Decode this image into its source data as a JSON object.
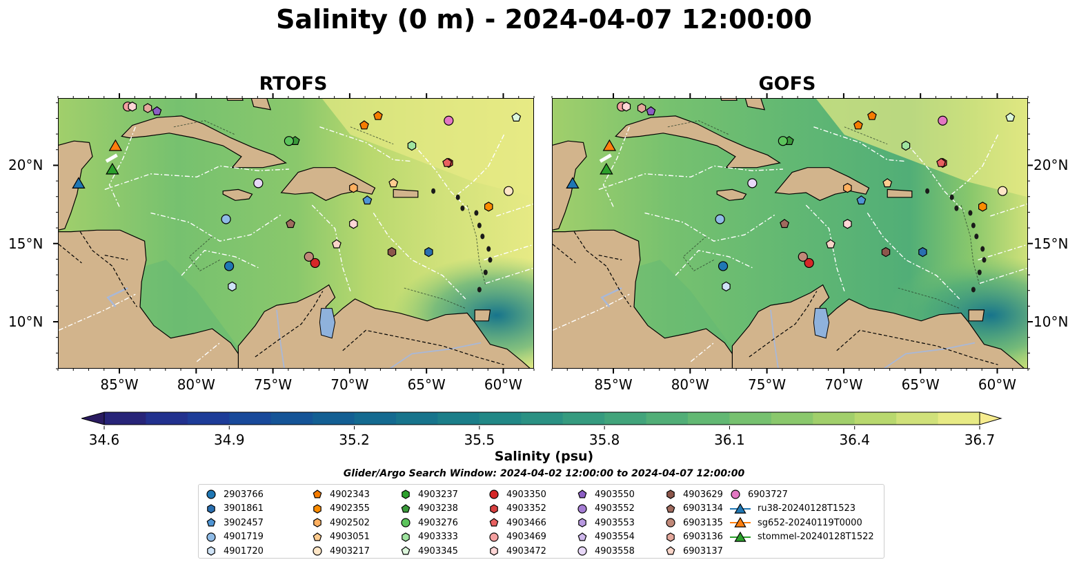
{
  "title": "Salinity (0 m) - 2024-04-07 12:00:00",
  "panels": [
    {
      "title": "RTOFS"
    },
    {
      "title": "GOFS"
    }
  ],
  "map": {
    "lon_range": [
      -89,
      -58
    ],
    "lat_range": [
      7,
      24.3
    ],
    "lon_ticks": [
      {
        "value": -85,
        "label": "85°W"
      },
      {
        "value": -80,
        "label": "80°W"
      },
      {
        "value": -75,
        "label": "75°W"
      },
      {
        "value": -70,
        "label": "70°W"
      },
      {
        "value": -65,
        "label": "65°W"
      },
      {
        "value": -60,
        "label": "60°W"
      }
    ],
    "lat_ticks": [
      {
        "value": 20,
        "label": "20°N"
      },
      {
        "value": 15,
        "label": "15°N"
      },
      {
        "value": 10,
        "label": "10°N"
      }
    ],
    "colors": {
      "land": "#d2b48c",
      "lake": "#8fb2dc",
      "river": "#a8b8d8",
      "eez": "#ffffff"
    }
  },
  "colorbar": {
    "label": "Salinity (psu)",
    "min": 34.6,
    "max": 36.7,
    "ticks": [
      "34.6",
      "34.9",
      "35.2",
      "35.5",
      "35.8",
      "36.1",
      "36.4",
      "36.7"
    ],
    "colors": [
      "#2a1b60",
      "#272478",
      "#22318e",
      "#1d3c98",
      "#18499a",
      "#155497",
      "#135f93",
      "#146a90",
      "#17748c",
      "#1b7e89",
      "#228886",
      "#2b9183",
      "#369b7f",
      "#42a47b",
      "#51ae77",
      "#62b873",
      "#76c16f",
      "#8ac86c",
      "#a1cf6b",
      "#b8d86e",
      "#d0e17a",
      "#e7ea85",
      "#f6ec8f"
    ]
  },
  "search_window": "Glider/Argo Search Window: 2024-04-02 12:00:00 to 2024-04-07 12:00:00",
  "legend": [
    {
      "label": "2903766",
      "marker": "circle",
      "color": "#1f77b4"
    },
    {
      "label": "3901861",
      "marker": "hexagon",
      "color": "#2a6fb0"
    },
    {
      "label": "3902457",
      "marker": "pentagon",
      "color": "#4f95d4"
    },
    {
      "label": "4901719",
      "marker": "circle",
      "color": "#8fbbe6"
    },
    {
      "label": "4901720",
      "marker": "hexagon",
      "color": "#cfe3f6"
    },
    {
      "label": "4902343",
      "marker": "pentagon",
      "color": "#f57c00"
    },
    {
      "label": "4902355",
      "marker": "hexagon",
      "color": "#fb8c00"
    },
    {
      "label": "4902502",
      "marker": "hexagon",
      "color": "#ffb060"
    },
    {
      "label": "4903051",
      "marker": "pentagon",
      "color": "#ffcc8f"
    },
    {
      "label": "4903217",
      "marker": "circle",
      "color": "#ffe6c6"
    },
    {
      "label": "4903237",
      "marker": "hexagon",
      "color": "#2ca02c"
    },
    {
      "label": "4903238",
      "marker": "pentagon",
      "color": "#3a9a3a"
    },
    {
      "label": "4903276",
      "marker": "circle",
      "color": "#5cc45c"
    },
    {
      "label": "4903333",
      "marker": "hexagon",
      "color": "#9fe39f"
    },
    {
      "label": "4903345",
      "marker": "pentagon",
      "color": "#dcf7dc"
    },
    {
      "label": "4903350",
      "marker": "circle",
      "color": "#d62728"
    },
    {
      "label": "4903352",
      "marker": "hexagon",
      "color": "#d84040"
    },
    {
      "label": "4903466",
      "marker": "pentagon",
      "color": "#e86060"
    },
    {
      "label": "4903469",
      "marker": "circle",
      "color": "#f4a0a0"
    },
    {
      "label": "4903472",
      "marker": "hexagon",
      "color": "#ffd6d6"
    },
    {
      "label": "4903550",
      "marker": "pentagon",
      "color": "#8c5ec4"
    },
    {
      "label": "4903552",
      "marker": "circle",
      "color": "#a57dd4"
    },
    {
      "label": "4903553",
      "marker": "hexagon",
      "color": "#b899e0"
    },
    {
      "label": "4903554",
      "marker": "pentagon",
      "color": "#cfb8ec"
    },
    {
      "label": "4903558",
      "marker": "circle",
      "color": "#e8d8f8"
    },
    {
      "label": "4903629",
      "marker": "hexagon",
      "color": "#8c564b"
    },
    {
      "label": "6903134",
      "marker": "pentagon",
      "color": "#a06b5e"
    },
    {
      "label": "6903135",
      "marker": "circle",
      "color": "#c08878"
    },
    {
      "label": "6903136",
      "marker": "hexagon",
      "color": "#e4a89c"
    },
    {
      "label": "6903137",
      "marker": "pentagon",
      "color": "#f8d4c8"
    },
    {
      "label": "6903727",
      "marker": "circle",
      "color": "#e377c2"
    },
    {
      "label": "ru38-20240128T1523",
      "marker": "triangle-line",
      "color": "#1f77b4"
    },
    {
      "label": "sg652-20240119T0000",
      "marker": "triangle-line",
      "color": "#ff7f0e"
    },
    {
      "label": "stommel-20240128T1522",
      "marker": "triangle-line",
      "color": "#2ca02c"
    }
  ],
  "floats": [
    {
      "id": "2903766",
      "lon": -77.9,
      "lat": 13.6
    },
    {
      "id": "3901861",
      "lon": -64.9,
      "lat": 14.5
    },
    {
      "id": "3902457",
      "lon": -68.9,
      "lat": 17.8
    },
    {
      "id": "4901719",
      "lon": -78.1,
      "lat": 16.6
    },
    {
      "id": "4901720",
      "lon": -77.7,
      "lat": 12.3
    },
    {
      "id": "4902343",
      "lon": -68.2,
      "lat": 23.2
    },
    {
      "id": "4902502",
      "lon": -69.8,
      "lat": 18.6
    },
    {
      "id": "4903051",
      "lon": -67.2,
      "lat": 18.9
    },
    {
      "id": "4903217",
      "lon": -59.7,
      "lat": 18.4
    },
    {
      "id": "4903238",
      "lon": -73.6,
      "lat": 21.6
    },
    {
      "id": "4903276",
      "lon": -74.0,
      "lat": 21.6
    },
    {
      "id": "4903333",
      "lon": -66.0,
      "lat": 21.3
    },
    {
      "id": "4903345",
      "lon": -59.2,
      "lat": 23.1
    },
    {
      "id": "4903350",
      "lon": -72.3,
      "lat": 13.8
    },
    {
      "id": "4903352",
      "lon": -63.6,
      "lat": 20.2
    },
    {
      "id": "4903466",
      "lon": -63.7,
      "lat": 20.2
    },
    {
      "id": "4903469",
      "lon": -84.5,
      "lat": 23.8
    },
    {
      "id": "4903472",
      "lon": -69.8,
      "lat": 16.3
    },
    {
      "id": "4903550",
      "lon": -82.6,
      "lat": 23.5
    },
    {
      "id": "4903558",
      "lon": -76.0,
      "lat": 18.9
    },
    {
      "id": "4903629",
      "lon": -67.3,
      "lat": 14.5
    },
    {
      "id": "6903134",
      "lon": -73.9,
      "lat": 16.3
    },
    {
      "id": "6903135",
      "lon": -72.7,
      "lat": 14.2
    },
    {
      "id": "6903136",
      "lon": -83.2,
      "lat": 23.7
    },
    {
      "id": "6903137",
      "lon": -70.9,
      "lat": 15.0
    },
    {
      "id": "6903727",
      "lon": -63.6,
      "lat": 22.9
    },
    {
      "id": "4903472",
      "lon": -84.2,
      "lat": 23.8
    },
    {
      "id": "4902343",
      "lon": -69.1,
      "lat": 22.6
    },
    {
      "id": "4902355",
      "lon": -61.0,
      "lat": 17.4
    }
  ],
  "gliders": [
    {
      "id": "ru38-20240128T1523",
      "lon": -87.7,
      "lat": 18.9
    },
    {
      "id": "sg652-20240119T0000",
      "lon": -85.3,
      "lat": 21.3
    },
    {
      "id": "stommel-20240128T1522",
      "lon": -85.5,
      "lat": 19.8
    }
  ]
}
